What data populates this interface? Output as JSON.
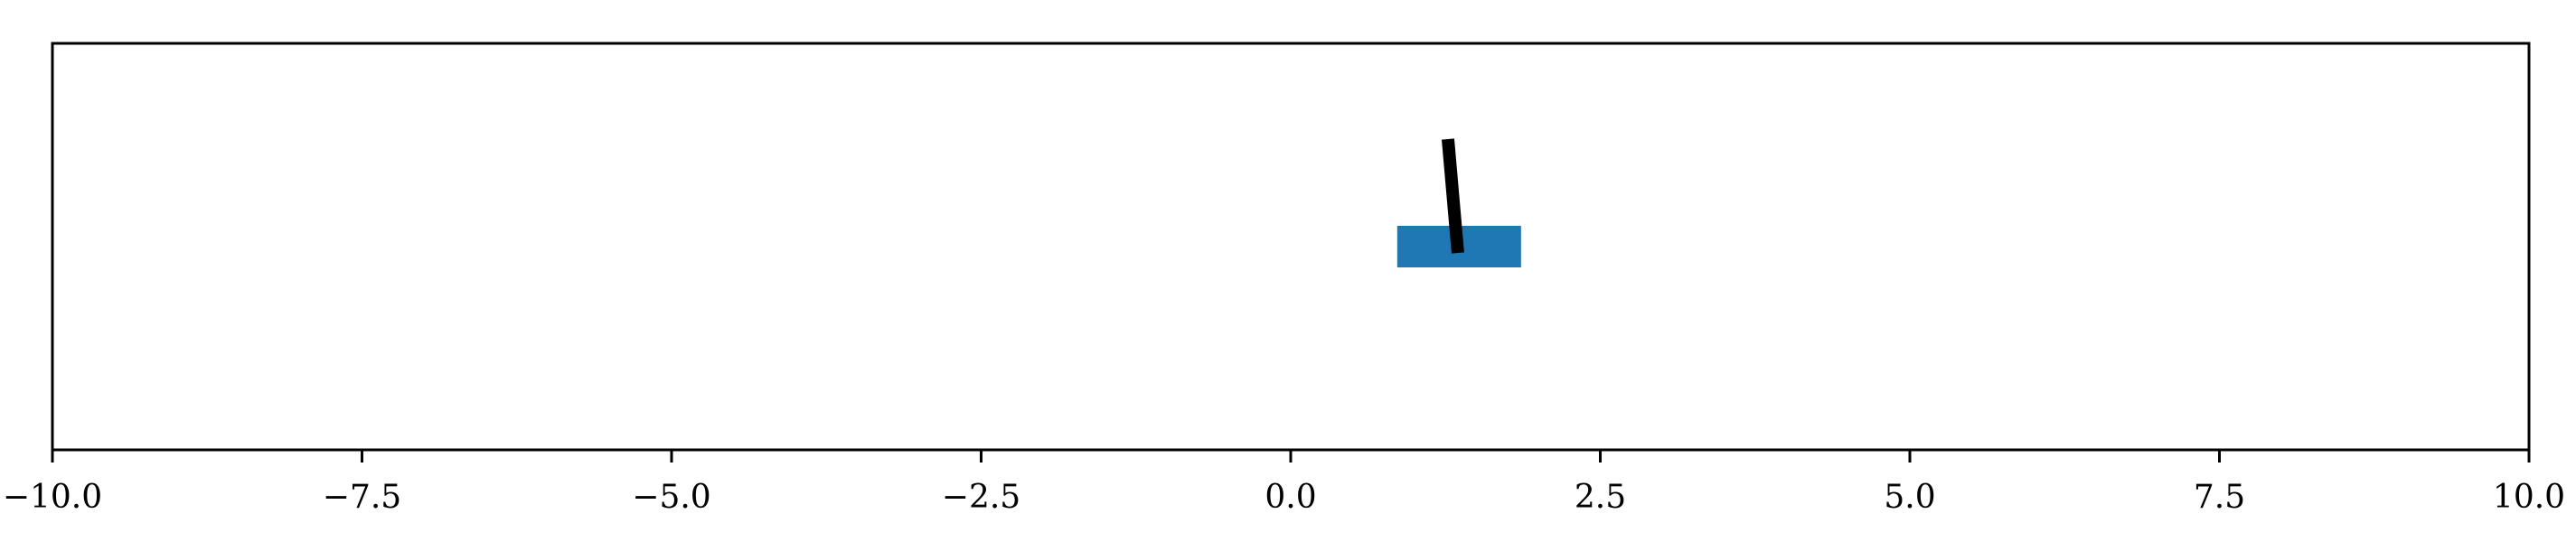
{
  "chart_data": {
    "type": "scatter",
    "title": "",
    "xlabel": "",
    "ylabel": "",
    "xlim": [
      -10.0,
      10.0
    ],
    "x_ticks": [
      -10.0,
      -7.5,
      -5.0,
      -2.5,
      0.0,
      2.5,
      5.0,
      7.5,
      10.0
    ],
    "x_tick_labels": [
      "−10.0",
      "−7.5",
      "−5.0",
      "−2.5",
      "0.0",
      "2.5",
      "5.0",
      "7.5",
      "10.0"
    ],
    "grid": false,
    "legend": "none",
    "y_axis_visible": false,
    "cart": {
      "x_min": 0.86,
      "x_max": 1.86,
      "color": "#1f77b4"
    },
    "pole": {
      "base_x": 1.35,
      "tip_x": 1.27,
      "color": "#000000"
    }
  }
}
